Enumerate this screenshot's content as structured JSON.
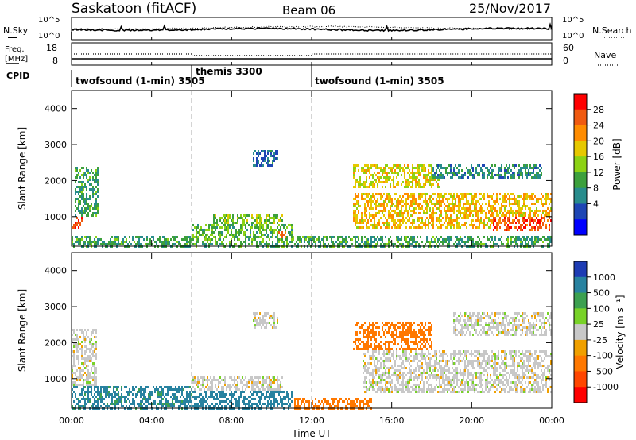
{
  "header": {
    "station": "Saskatoon (fitACF)",
    "beam": "Beam 06",
    "date": "25/Nov/2017"
  },
  "noise_panel": {
    "left_label": "N.Sky",
    "right_label": "N.Search",
    "left_ticks": [
      "10^5",
      "10^0"
    ],
    "right_ticks": [
      "10^5",
      "10^0"
    ]
  },
  "freq_panel": {
    "left_label_line1": "Freq.",
    "left_label_line2": "[MHz]",
    "left_ticks": [
      "18",
      "8"
    ],
    "right_label": "Nave",
    "right_ticks": [
      "60",
      "0"
    ],
    "freq_mhz": 10.4,
    "nave": [
      {
        "start": 0.0,
        "end": 6.0,
        "value": 30
      },
      {
        "start": 6.0,
        "end": 12.0,
        "value": 26
      },
      {
        "start": 12.0,
        "end": 24.0,
        "value": 30
      }
    ]
  },
  "cpid": {
    "label": "CPID",
    "segments": [
      {
        "name": "twofsound (1-min) 3505",
        "start": 0.0,
        "end": 6.0
      },
      {
        "name": "themis 3300",
        "start": 6.0,
        "end": 12.0
      },
      {
        "name": "twofsound (1-min) 3505",
        "start": 12.0,
        "end": 24.0
      }
    ]
  },
  "colorbars": {
    "power": {
      "label": "Power [dB]",
      "ticks": [
        "28",
        "24",
        "20",
        "16",
        "12",
        "8",
        "4"
      ],
      "colors": [
        "#ff0000",
        "#f05a10",
        "#ff8c00",
        "#e6c800",
        "#8cd214",
        "#3ca03c",
        "#288c8c",
        "#1e46b4",
        "#0000ff"
      ]
    },
    "velocity": {
      "label": "Velocity [m s⁻¹]",
      "ticks": [
        "1000",
        "500",
        "100",
        "25",
        "-25",
        "-100",
        "-500",
        "-1000"
      ],
      "colors": [
        "#1e3cb4",
        "#2882a0",
        "#3ca050",
        "#78d228",
        "#c8c8c8",
        "#f0a000",
        "#ff7800",
        "#ff4600",
        "#ff0000"
      ]
    }
  },
  "axes": {
    "ylabel": "Slant Range [km]",
    "xlabel": "Time UT",
    "xticks": [
      "00:00",
      "04:00",
      "08:00",
      "12:00",
      "16:00",
      "20:00",
      "00:00"
    ],
    "yticks": [
      "4000",
      "3000",
      "2000",
      "1000"
    ]
  },
  "chart_data": [
    {
      "type": "heatmap",
      "title": "Power",
      "xlabel": "Time UT",
      "ylabel": "Slant Range [km]",
      "xlim_hours": [
        0,
        24
      ],
      "ylim_km": [
        180,
        4500
      ],
      "cbar_range_db": [
        0,
        30
      ],
      "regions": [
        {
          "t0": 0.0,
          "t1": 0.5,
          "r0": 700,
          "r1": 1000,
          "level": 27
        },
        {
          "t0": 0.1,
          "t1": 1.3,
          "r0": 1000,
          "r1": 2400,
          "level": 10
        },
        {
          "t0": 0.0,
          "t1": 24.0,
          "r0": 180,
          "r1": 500,
          "level": 10
        },
        {
          "t0": 6.0,
          "t1": 11.0,
          "r0": 300,
          "r1": 800,
          "level": 12
        },
        {
          "t0": 7.0,
          "t1": 10.5,
          "r0": 800,
          "r1": 1100,
          "level": 14
        },
        {
          "t0": 10.3,
          "t1": 10.7,
          "r0": 450,
          "r1": 650,
          "level": 25
        },
        {
          "t0": 9.0,
          "t1": 10.3,
          "r0": 2400,
          "r1": 2900,
          "level": 6
        },
        {
          "t0": 14.0,
          "t1": 18.5,
          "r0": 1800,
          "r1": 2500,
          "level": 18
        },
        {
          "t0": 14.0,
          "t1": 24.0,
          "r0": 700,
          "r1": 1700,
          "level": 20
        },
        {
          "t0": 18.0,
          "t1": 23.5,
          "r0": 2100,
          "r1": 2500,
          "level": 8
        },
        {
          "t0": 21.0,
          "t1": 24.0,
          "r0": 600,
          "r1": 1000,
          "level": 27
        }
      ]
    },
    {
      "type": "heatmap",
      "title": "Velocity",
      "xlabel": "Time UT",
      "ylabel": "Slant Range [km]",
      "xlim_hours": [
        0,
        24
      ],
      "ylim_km": [
        180,
        4500
      ],
      "cbar_range_ms": [
        -1000,
        1000
      ],
      "regions": [
        {
          "t0": 0.0,
          "t1": 1.2,
          "r0": 800,
          "r1": 2400,
          "level": 0
        },
        {
          "t0": 0.0,
          "t1": 6.0,
          "r0": 200,
          "r1": 800,
          "level": 120
        },
        {
          "t0": 6.0,
          "t1": 11.0,
          "r0": 200,
          "r1": 700,
          "level": 150
        },
        {
          "t0": 6.0,
          "t1": 10.5,
          "r0": 700,
          "r1": 1100,
          "level": 0
        },
        {
          "t0": 9.0,
          "t1": 10.3,
          "r0": 2400,
          "r1": 2900,
          "level": 0
        },
        {
          "t0": 11.0,
          "t1": 15.0,
          "r0": 200,
          "r1": 500,
          "level": -150
        },
        {
          "t0": 14.0,
          "t1": 18.0,
          "r0": 1800,
          "r1": 2600,
          "level": -400
        },
        {
          "t0": 14.5,
          "t1": 24.0,
          "r0": 600,
          "r1": 1800,
          "level": 0
        },
        {
          "t0": 19.0,
          "t1": 24.0,
          "r0": 2200,
          "r1": 2900,
          "level": 0
        }
      ]
    }
  ]
}
